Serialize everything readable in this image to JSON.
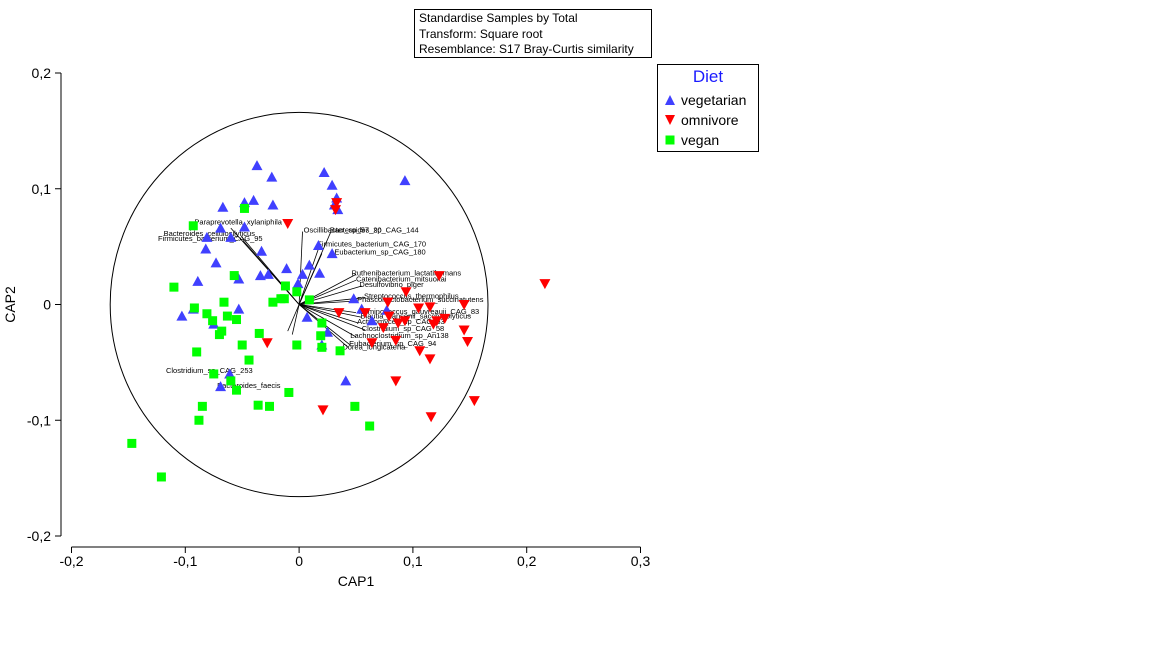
{
  "info": {
    "line1": "Standardise Samples by Total",
    "line2": "Transform: Square root",
    "line3": "Resemblance: S17 Bray-Curtis similarity"
  },
  "legend": {
    "title": "Diet",
    "items": [
      {
        "label": "vegetarian",
        "marker": "triangle-up",
        "color": "#4040ff"
      },
      {
        "label": "omnivore",
        "marker": "triangle-down",
        "color": "#ff0000"
      },
      {
        "label": "vegan",
        "marker": "square",
        "color": "#00ff00"
      }
    ]
  },
  "chart_data": {
    "type": "scatter",
    "xlabel": "CAP1",
    "ylabel": "CAP2",
    "xlim": [
      -0.2,
      0.3
    ],
    "ylim": [
      -0.2,
      0.2
    ],
    "xticks": [
      -0.2,
      -0.1,
      0,
      0.1,
      0.2,
      0.3
    ],
    "xtick_labels": [
      "-0,2",
      "-0,1",
      "0",
      "0,1",
      "0,2",
      "0,3"
    ],
    "yticks": [
      -0.2,
      -0.1,
      0,
      0.1,
      0.2
    ],
    "ytick_labels": [
      "-0,2",
      "-0,1",
      "0",
      "0,1",
      "0,2"
    ],
    "circle_radius": 0.166,
    "series": [
      {
        "name": "vegetarian",
        "marker": "triangle-up",
        "color": "#4040ff",
        "points": [
          [
            -0.037,
            0.12
          ],
          [
            -0.024,
            0.11
          ],
          [
            -0.048,
            0.088
          ],
          [
            -0.067,
            0.084
          ],
          [
            -0.04,
            0.09
          ],
          [
            -0.023,
            0.086
          ],
          [
            -0.048,
            0.067
          ],
          [
            -0.069,
            0.066
          ],
          [
            -0.06,
            0.058
          ],
          [
            -0.081,
            0.058
          ],
          [
            -0.082,
            0.048
          ],
          [
            -0.073,
            0.036
          ],
          [
            -0.033,
            0.046
          ],
          [
            -0.034,
            0.025
          ],
          [
            -0.053,
            0.022
          ],
          [
            -0.089,
            0.02
          ],
          [
            -0.093,
            -0.004
          ],
          [
            -0.103,
            -0.01
          ],
          [
            -0.075,
            -0.017
          ],
          [
            -0.053,
            -0.004
          ],
          [
            -0.027,
            0.026
          ],
          [
            -0.011,
            0.031
          ],
          [
            0.022,
            0.114
          ],
          [
            0.029,
            0.103
          ],
          [
            0.033,
            0.092
          ],
          [
            0.031,
            0.086
          ],
          [
            0.034,
            0.082
          ],
          [
            0.093,
            0.107
          ],
          [
            0.017,
            0.051
          ],
          [
            0.009,
            0.034
          ],
          [
            0.003,
            0.026
          ],
          [
            -0.001,
            0.018
          ],
          [
            0.018,
            0.027
          ],
          [
            0.029,
            0.044
          ],
          [
            0.048,
            0.005
          ],
          [
            0.055,
            -0.004
          ],
          [
            0.064,
            -0.014
          ],
          [
            0.077,
            -0.005
          ],
          [
            0.025,
            -0.024
          ],
          [
            0.02,
            -0.035
          ],
          [
            0.041,
            -0.066
          ],
          [
            0.007,
            -0.011
          ],
          [
            -0.061,
            -0.06
          ],
          [
            -0.069,
            -0.071
          ]
        ]
      },
      {
        "name": "omnivore",
        "marker": "triangle-down",
        "color": "#ff0000",
        "points": [
          [
            -0.01,
            0.07
          ],
          [
            0.033,
            0.088
          ],
          [
            0.032,
            0.082
          ],
          [
            0.216,
            0.018
          ],
          [
            0.123,
            0.025
          ],
          [
            0.145,
            0.0
          ],
          [
            0.115,
            -0.002
          ],
          [
            0.105,
            -0.003
          ],
          [
            0.145,
            -0.022
          ],
          [
            0.128,
            -0.012
          ],
          [
            0.093,
            -0.014
          ],
          [
            0.079,
            -0.01
          ],
          [
            0.087,
            -0.016
          ],
          [
            0.118,
            -0.017
          ],
          [
            0.148,
            -0.032
          ],
          [
            0.115,
            -0.047
          ],
          [
            0.106,
            -0.04
          ],
          [
            0.085,
            -0.066
          ],
          [
            0.116,
            -0.097
          ],
          [
            0.154,
            -0.083
          ],
          [
            0.085,
            -0.031
          ],
          [
            0.078,
            0.002
          ],
          [
            0.058,
            -0.007
          ],
          [
            0.035,
            -0.007
          ],
          [
            0.094,
            0.011
          ],
          [
            0.074,
            -0.02
          ],
          [
            0.021,
            -0.091
          ],
          [
            -0.028,
            -0.033
          ],
          [
            0.121,
            -0.014
          ],
          [
            0.064,
            -0.033
          ]
        ]
      },
      {
        "name": "vegan",
        "marker": "square",
        "color": "#00ff00",
        "points": [
          [
            -0.093,
            0.068
          ],
          [
            -0.048,
            0.083
          ],
          [
            -0.11,
            0.015
          ],
          [
            -0.092,
            -0.003
          ],
          [
            -0.081,
            -0.008
          ],
          [
            -0.076,
            -0.014
          ],
          [
            -0.066,
            0.002
          ],
          [
            -0.063,
            -0.01
          ],
          [
            -0.068,
            -0.023
          ],
          [
            -0.07,
            -0.026
          ],
          [
            -0.055,
            -0.013
          ],
          [
            -0.057,
            0.025
          ],
          [
            -0.05,
            -0.035
          ],
          [
            -0.035,
            -0.025
          ],
          [
            -0.023,
            0.002
          ],
          [
            -0.016,
            0.005
          ],
          [
            -0.013,
            0.005
          ],
          [
            -0.012,
            0.016
          ],
          [
            -0.002,
            0.011
          ],
          [
            -0.002,
            -0.035
          ],
          [
            0.009,
            0.004
          ],
          [
            0.019,
            -0.027
          ],
          [
            0.02,
            -0.016
          ],
          [
            -0.09,
            -0.041
          ],
          [
            -0.085,
            -0.088
          ],
          [
            -0.088,
            -0.1
          ],
          [
            -0.075,
            -0.06
          ],
          [
            -0.06,
            -0.066
          ],
          [
            -0.055,
            -0.074
          ],
          [
            -0.044,
            -0.048
          ],
          [
            -0.036,
            -0.087
          ],
          [
            -0.026,
            -0.088
          ],
          [
            -0.009,
            -0.076
          ],
          [
            0.049,
            -0.088
          ],
          [
            0.062,
            -0.105
          ],
          [
            -0.147,
            -0.12
          ],
          [
            -0.121,
            -0.149
          ],
          [
            0.036,
            -0.04
          ],
          [
            0.02,
            -0.037
          ]
        ]
      }
    ],
    "vectors": [
      {
        "label": "Paraprevotella_xylaniphila",
        "end": [
          -0.06,
          0.066
        ],
        "lx": -0.092,
        "ly": 0.069,
        "anchor": "start"
      },
      {
        "label": "Bacteroides_cellulosilyticus",
        "end": [
          -0.05,
          0.058
        ],
        "lx": -0.119,
        "ly": 0.059,
        "anchor": "start"
      },
      {
        "label": "Firmicutes_bacterium_CAG_95",
        "end": [
          -0.049,
          0.055
        ],
        "lx": -0.124,
        "ly": 0.055,
        "anchor": "start"
      },
      {
        "label": "Oscillibacter_sp_57_20",
        "end": [
          0.003,
          0.063
        ],
        "lx": 0.004,
        "ly": 0.062,
        "anchor": "start"
      },
      {
        "label": "Bacteroides_sp_CAG_144",
        "end": [
          0.028,
          0.063
        ],
        "lx": 0.027,
        "ly": 0.062,
        "anchor": "start"
      },
      {
        "label": "Firmicutes_bacterium_CAG_170",
        "end": [
          0.018,
          0.051
        ],
        "lx": 0.016,
        "ly": 0.05,
        "anchor": "start"
      },
      {
        "label": "Eubacterium_sp_CAG_180",
        "end": [
          0.02,
          0.044
        ],
        "lx": 0.031,
        "ly": 0.043,
        "anchor": "start"
      },
      {
        "label": "Ruthenibacterium_lactatiformans",
        "end": [
          0.05,
          0.026
        ],
        "lx": 0.046,
        "ly": 0.025,
        "anchor": "start"
      },
      {
        "label": "Catenibacterium_mitsuokai",
        "end": [
          0.05,
          0.021
        ],
        "lx": 0.05,
        "ly": 0.02,
        "anchor": "start"
      },
      {
        "label": "Desulfovibrio_piger",
        "end": [
          0.055,
          0.016
        ],
        "lx": 0.053,
        "ly": 0.015,
        "anchor": "start"
      },
      {
        "label": "Streptococcus_thermophilus",
        "end": [
          0.058,
          0.006
        ],
        "lx": 0.057,
        "ly": 0.005,
        "anchor": "start"
      },
      {
        "label": "Phascolarctobacterium_succinatutens",
        "end": [
          0.05,
          0.003
        ],
        "lx": 0.051,
        "ly": 0.002,
        "anchor": "start"
      },
      {
        "label": "Ruminococcus_gauvreauii_CAG_83",
        "end": [
          0.05,
          -0.007
        ],
        "lx": 0.052,
        "ly": -0.008,
        "anchor": "start"
      },
      {
        "label": "Blautia_hansenii_saccharolyticus",
        "end": [
          0.055,
          -0.011
        ],
        "lx": 0.054,
        "ly": -0.012,
        "anchor": "start"
      },
      {
        "label": "Actinomyces_sp_CAG_53",
        "end": [
          0.052,
          -0.016
        ],
        "lx": 0.051,
        "ly": -0.017,
        "anchor": "start"
      },
      {
        "label": "Clostridium_sp_CAG_58",
        "end": [
          0.058,
          -0.022
        ],
        "lx": 0.055,
        "ly": -0.023,
        "anchor": "start"
      },
      {
        "label": "Lachnoclostridium_sp_An138",
        "end": [
          0.05,
          -0.028
        ],
        "lx": 0.045,
        "ly": -0.029,
        "anchor": "start"
      },
      {
        "label": "Eubacterium_sp_CAG_94",
        "end": [
          0.045,
          -0.035
        ],
        "lx": 0.044,
        "ly": -0.036,
        "anchor": "start"
      },
      {
        "label": "Dorea_longicatena",
        "end": [
          0.043,
          -0.037
        ],
        "lx": 0.038,
        "ly": -0.039,
        "anchor": "start"
      },
      {
        "label": "Clostridium_sp_CAG_253",
        "end": [
          -0.01,
          -0.023
        ],
        "lx": -0.117,
        "ly": -0.059,
        "anchor": "start"
      },
      {
        "label": "Bacteroides_faecis",
        "end": [
          -0.006,
          -0.026
        ],
        "lx": -0.072,
        "ly": -0.072,
        "anchor": "start"
      }
    ]
  }
}
